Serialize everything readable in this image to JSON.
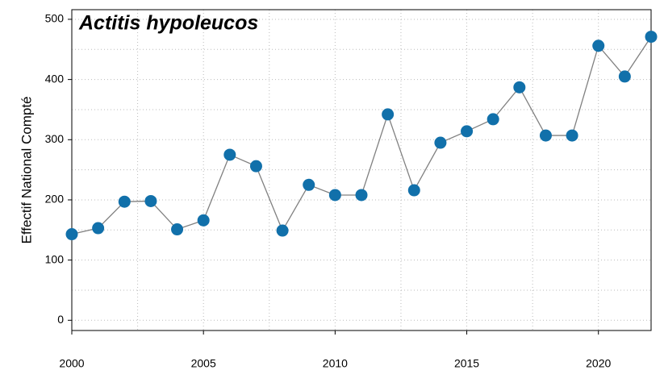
{
  "chart_data": {
    "type": "line",
    "title": "Actitis hypoleucos",
    "y_label": "Effectif National Compté",
    "x": [
      2000,
      2001,
      2002,
      2003,
      2004,
      2005,
      2006,
      2007,
      2008,
      2009,
      2010,
      2011,
      2012,
      2013,
      2014,
      2015,
      2016,
      2017,
      2018,
      2019,
      2020,
      2021,
      2022
    ],
    "series": [
      {
        "color": "#1170aa",
        "line_color": "#808080",
        "values": [
          143,
          153,
          197,
          198,
          151,
          166,
          275,
          256,
          149,
          225,
          208,
          208,
          342,
          216,
          295,
          314,
          334,
          387,
          307,
          307,
          456,
          405,
          471
        ]
      }
    ],
    "xlim": [
      2000,
      2022
    ],
    "xticks": [
      2000,
      2005,
      2010,
      2015,
      2020
    ],
    "xminor_ticks": [
      2002.5,
      2007.5,
      2012.5,
      2017.5
    ],
    "ylim": [
      -17,
      516
    ],
    "yticks": [
      0,
      100,
      200,
      300,
      400,
      500
    ],
    "yminor_ticks": [
      50,
      150,
      250,
      350,
      450
    ],
    "grid": true
  }
}
